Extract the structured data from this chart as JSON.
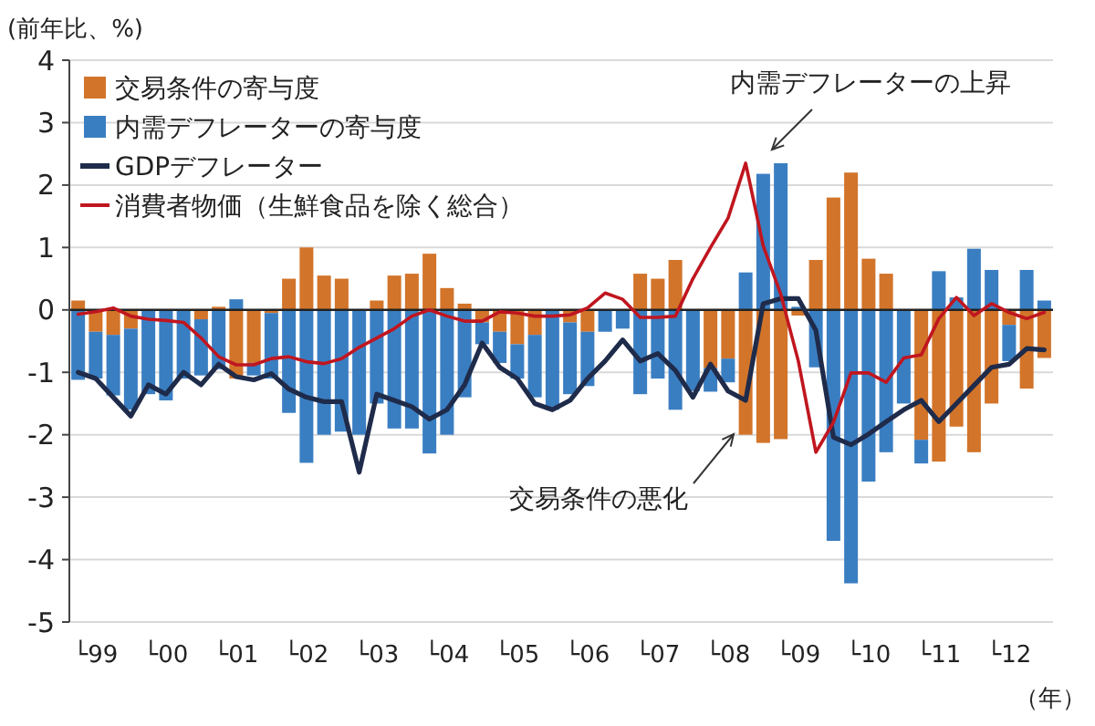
{
  "chart_data": {
    "type": "bar",
    "stacked": true,
    "ylabel": "(前年比、%)",
    "xlabel": "（年）",
    "categories": [
      null,
      "└99",
      null,
      null,
      null,
      "└00",
      null,
      null,
      null,
      "└01",
      null,
      null,
      null,
      "└02",
      null,
      null,
      null,
      "└03",
      null,
      null,
      null,
      "└04",
      null,
      null,
      null,
      "└05",
      null,
      null,
      null,
      "└06",
      null,
      null,
      null,
      "└07",
      null,
      null,
      null,
      "└08",
      null,
      null,
      null,
      "└09",
      null,
      null,
      null,
      "└10",
      null,
      null,
      null,
      "└11",
      null,
      null,
      null,
      "└12",
      null,
      null
    ],
    "series": [
      {
        "name": "交易条件の寄与度",
        "color": "#d2742a",
        "values": [
          0.15,
          -0.35,
          -0.4,
          -0.3,
          0,
          0,
          0,
          -0.15,
          0.05,
          -1.1,
          -0.85,
          -0.05,
          0.5,
          1.0,
          0.55,
          0.5,
          0,
          0.15,
          0.55,
          0.58,
          0.9,
          0.35,
          0.1,
          -0.2,
          -0.35,
          -0.55,
          -0.4,
          0,
          -0.2,
          -0.35,
          0,
          0,
          0.58,
          0.5,
          0.8,
          0,
          -0.93,
          -0.78,
          -2.0,
          -2.13,
          -2.07,
          -0.09,
          0.8,
          1.8,
          2.2,
          0.82,
          0.58,
          0,
          -2.08,
          -2.43,
          -1.87,
          -2.28,
          -1.5,
          -0.24,
          -1.26,
          -0.77
        ]
      },
      {
        "name": "内需デフレーターの寄与度",
        "color": "#3a7ec2",
        "values": [
          -1.12,
          -0.75,
          -0.97,
          -1.3,
          -1.35,
          -1.45,
          -1.1,
          -0.9,
          -0.95,
          0.17,
          -0.2,
          -1.05,
          -1.65,
          -2.45,
          -2.0,
          -1.95,
          -2.0,
          -1.5,
          -1.9,
          -1.9,
          -2.3,
          -2.0,
          -1.4,
          -0.35,
          -0.5,
          -0.55,
          -1.0,
          -1.6,
          -1.15,
          -0.87,
          -0.35,
          -0.3,
          -1.35,
          -1.1,
          -1.6,
          -1.3,
          -0.38,
          -0.38,
          0.6,
          2.18,
          2.35,
          0.05,
          -0.92,
          -3.7,
          -4.38,
          -2.75,
          -2.28,
          -1.5,
          -0.38,
          0.62,
          0.2,
          0.98,
          0.64,
          -0.58,
          0.64,
          0.15
        ]
      },
      {
        "name": "GDPデフレーター",
        "type": "line",
        "color": "#1f2b4a",
        "values": [
          -1.0,
          -1.1,
          -1.4,
          -1.7,
          -1.2,
          -1.35,
          -1.0,
          -1.2,
          -0.87,
          -1.07,
          -1.12,
          -1.02,
          -1.27,
          -1.4,
          -1.47,
          -1.47,
          -2.6,
          -1.35,
          -1.45,
          -1.55,
          -1.75,
          -1.6,
          -1.2,
          -0.53,
          -0.92,
          -1.1,
          -1.5,
          -1.6,
          -1.45,
          -1.1,
          -0.82,
          -0.48,
          -0.82,
          -0.7,
          -0.97,
          -1.4,
          -0.87,
          -1.3,
          -1.45,
          0.1,
          0.18,
          0.18,
          -0.33,
          -2.04,
          -2.16,
          -1.99,
          -1.79,
          -1.6,
          -1.45,
          -1.79,
          -1.5,
          -1.21,
          -0.92,
          -0.87,
          -0.62,
          -0.64
        ]
      },
      {
        "name": "消費者物価（生鮮食品を除く総合）",
        "type": "line",
        "color": "#c0161f",
        "values": [
          -0.07,
          -0.03,
          0.03,
          -0.1,
          -0.15,
          -0.17,
          -0.2,
          -0.45,
          -0.75,
          -0.88,
          -0.88,
          -0.78,
          -0.75,
          -0.83,
          -0.86,
          -0.78,
          -0.6,
          -0.45,
          -0.3,
          -0.1,
          0.0,
          -0.1,
          -0.18,
          -0.18,
          -0.03,
          -0.05,
          -0.1,
          -0.1,
          -0.08,
          0.03,
          0.27,
          0.17,
          -0.12,
          -0.12,
          -0.1,
          0.5,
          1.0,
          1.47,
          2.35,
          1.03,
          0.25,
          -0.82,
          -2.28,
          -1.8,
          -1.01,
          -1.01,
          -1.16,
          -0.77,
          -0.72,
          -0.14,
          0.2,
          -0.09,
          0.1,
          -0.04,
          -0.14,
          -0.04
        ]
      }
    ],
    "ylim": [
      -5,
      4
    ],
    "yticks": [
      -5,
      -4,
      -3,
      -2,
      -1,
      0,
      1,
      2,
      3,
      4
    ],
    "grid": "y",
    "legend": "top left",
    "annotations": [
      "内需デフレーターの上昇",
      "交易条件の悪化"
    ]
  }
}
